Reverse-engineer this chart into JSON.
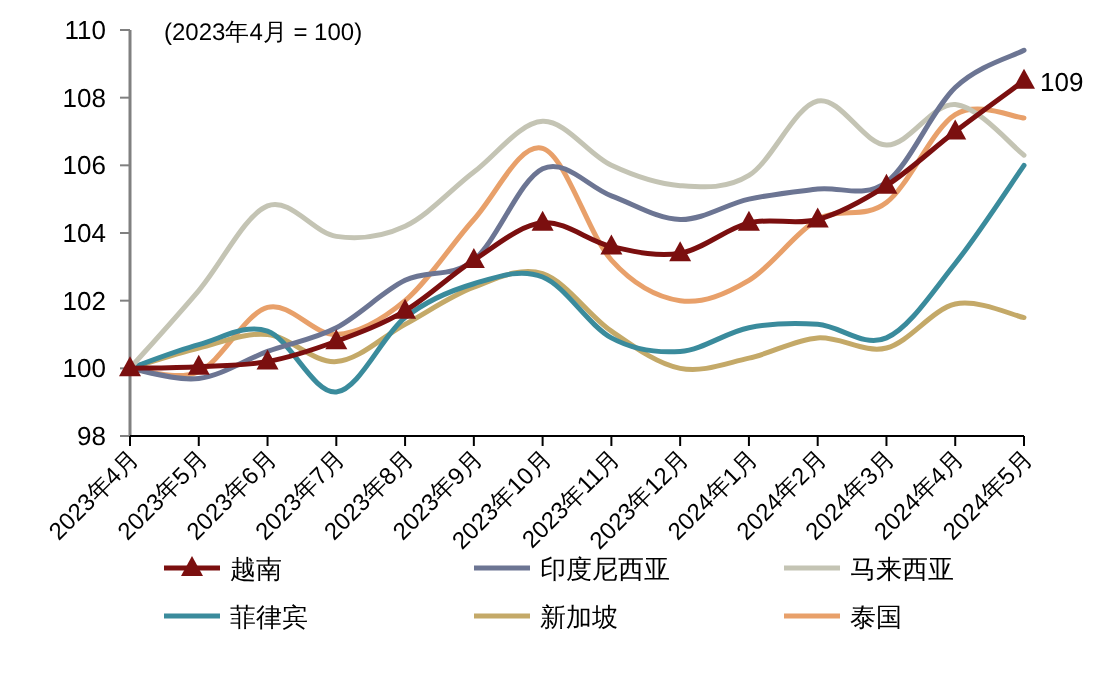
{
  "chart_data": {
    "type": "line",
    "subtitle": "(2023年4月 = 100)",
    "categories": [
      "2023年4月",
      "2023年5月",
      "2023年6月",
      "2023年7月",
      "2023年8月",
      "2023年9月",
      "2023年10月",
      "2023年11月",
      "2023年12月",
      "2024年1月",
      "2024年2月",
      "2024年3月",
      "2024年4月",
      "2024年5月"
    ],
    "series": [
      {
        "name": "越南",
        "color": "#7b0f0f",
        "marker": "triangle",
        "values": [
          100,
          100.05,
          100.2,
          100.8,
          101.7,
          103.2,
          104.3,
          103.6,
          103.4,
          104.3,
          104.4,
          105.4,
          107.0,
          108.5
        ],
        "value_labels": [
          null,
          null,
          null,
          null,
          null,
          null,
          null,
          null,
          null,
          null,
          null,
          null,
          null,
          "109"
        ]
      },
      {
        "name": "印度尼西亚",
        "color": "#6c7593",
        "values": [
          100,
          99.7,
          100.5,
          101.2,
          102.6,
          103.2,
          105.9,
          105.1,
          104.4,
          105.0,
          105.3,
          105.5,
          108.3,
          109.4
        ]
      },
      {
        "name": "马来西亚",
        "color": "#c4c4b4",
        "values": [
          100,
          102.3,
          104.8,
          103.9,
          104.2,
          105.8,
          107.3,
          106.0,
          105.4,
          105.7,
          107.9,
          106.6,
          107.8,
          106.3
        ]
      },
      {
        "name": "菲律宾",
        "color": "#3a8b9c",
        "values": [
          100,
          100.7,
          101.1,
          99.3,
          101.5,
          102.5,
          102.7,
          100.9,
          100.5,
          101.2,
          101.3,
          100.9,
          103.1,
          106.0
        ]
      },
      {
        "name": "新加坡",
        "color": "#c4a968",
        "values": [
          100,
          100.6,
          101.0,
          100.2,
          101.3,
          102.4,
          102.8,
          101.1,
          100.0,
          100.3,
          100.9,
          100.6,
          101.9,
          101.5
        ]
      },
      {
        "name": "泰国",
        "color": "#e8a06a",
        "values": [
          100,
          99.9,
          101.8,
          101.0,
          102.0,
          104.4,
          106.5,
          103.2,
          102.0,
          102.6,
          104.4,
          104.9,
          107.5,
          107.4
        ]
      }
    ],
    "ylim": [
      98,
      110
    ],
    "yticks": [
      98,
      100,
      102,
      104,
      106,
      108,
      110
    ],
    "legend": "bottom"
  }
}
